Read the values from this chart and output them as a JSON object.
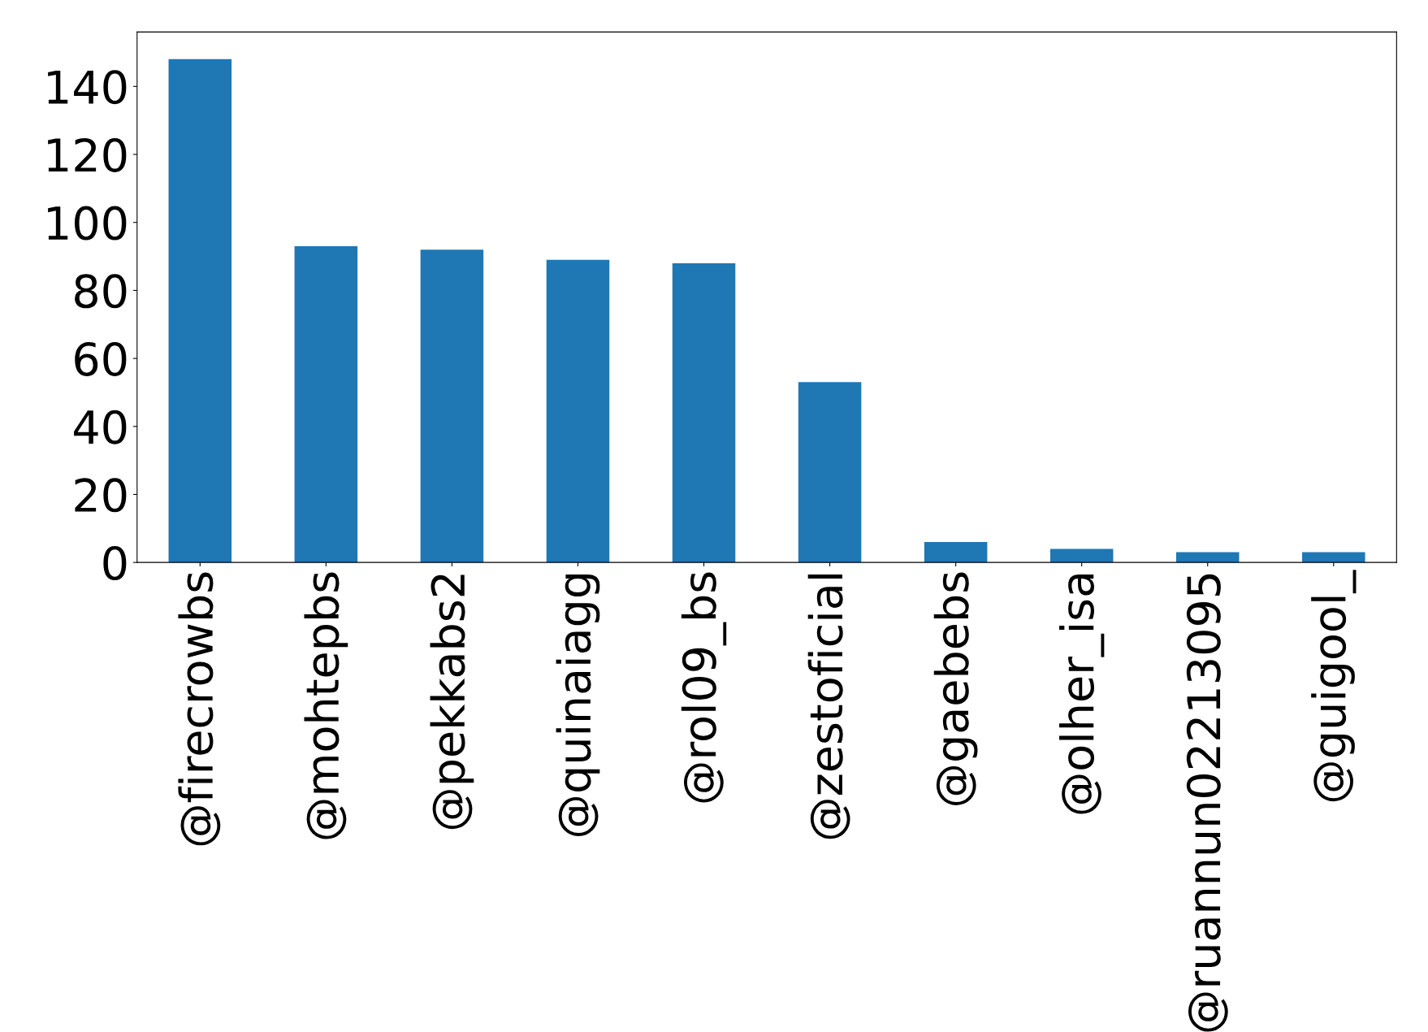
{
  "chart_data": {
    "type": "bar",
    "categories": [
      "@firecrowbs",
      "@mohtepbs",
      "@pekkabs2",
      "@quinaiagg",
      "@rol09_bs",
      "@zestoficial",
      "@gaebebs",
      "@olher_isa",
      "@ruannun02213095",
      "@guigool_"
    ],
    "values": [
      148,
      93,
      92,
      89,
      88,
      53,
      6,
      4,
      3,
      3
    ],
    "color": "#1f77b4",
    "ylim": [
      0,
      156
    ],
    "yticks": [
      0,
      20,
      40,
      60,
      80,
      100,
      120,
      140
    ],
    "grid": false,
    "legend": false
  }
}
